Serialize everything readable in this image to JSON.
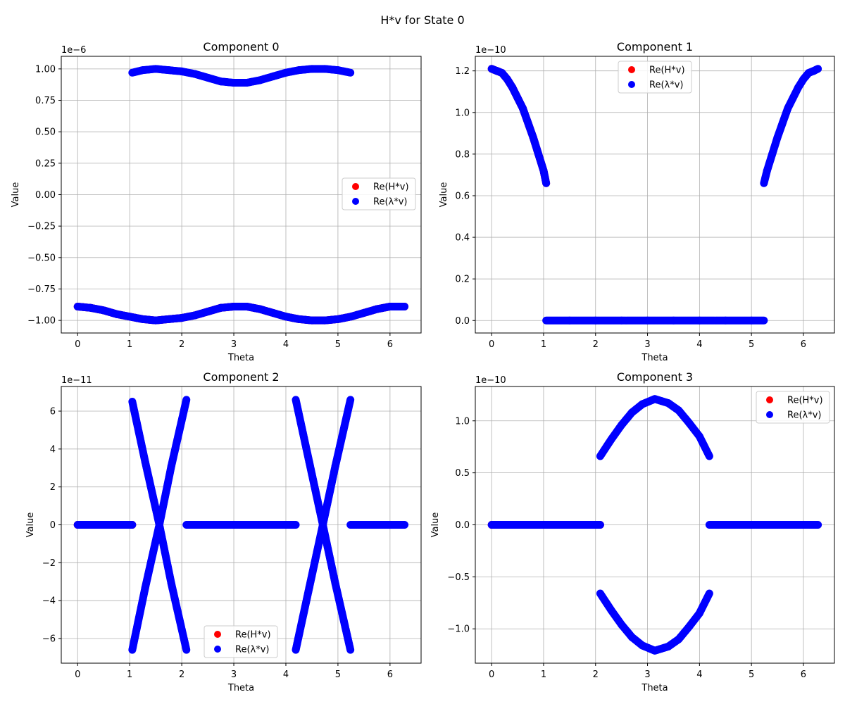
{
  "figure": {
    "title": "H*v for State 0"
  },
  "chart_data": [
    {
      "type": "scatter",
      "title": "Component 0",
      "xlabel": "Theta",
      "ylabel": "Value",
      "offset_text": "1e−6",
      "scale": 1e-06,
      "xlim": [
        -0.314,
        6.597
      ],
      "ylim": [
        -1.1,
        1.1
      ],
      "xticks": [
        0,
        1,
        2,
        3,
        4,
        5,
        6
      ],
      "xtick_labels": [
        "0",
        "1",
        "2",
        "3",
        "4",
        "5",
        "6"
      ],
      "yticks": [
        -1.0,
        -0.75,
        -0.5,
        -0.25,
        0.0,
        0.25,
        0.5,
        0.75,
        1.0
      ],
      "ytick_labels": [
        "−1.00",
        "−0.75",
        "−0.50",
        "−0.25",
        "0.00",
        "0.25",
        "0.50",
        "0.75",
        "1.00"
      ],
      "grid": true,
      "legend_position": "center-right",
      "legend": [
        "Re(H*v)",
        "Re(λ*v)"
      ],
      "series": [
        {
          "name": "Re(H*v)",
          "color": "#ff0000",
          "x": [
            0,
            0.25,
            0.5,
            0.75,
            1,
            1.25,
            1.5,
            1.75,
            2,
            2.25,
            2.5,
            2.75,
            3,
            3.25,
            3.5,
            3.75,
            4,
            4.25,
            4.5,
            4.75,
            5,
            5.25,
            5.5,
            5.75,
            6,
            6.28
          ],
          "y": [
            -0.89,
            -0.9,
            -0.92,
            -0.95,
            -0.97,
            -0.99,
            -1.0,
            -0.99,
            -0.98,
            -0.96,
            -0.93,
            -0.9,
            -0.89,
            -0.89,
            -0.91,
            -0.94,
            -0.97,
            -0.99,
            -1.0,
            -1.0,
            -0.99,
            -0.97,
            -0.94,
            -0.91,
            -0.89,
            -0.89
          ]
        },
        {
          "name": "Re(λ*v)",
          "color": "#0000ff",
          "x": [
            0,
            0.25,
            0.5,
            0.75,
            1,
            1.25,
            1.5,
            1.75,
            2,
            2.25,
            2.5,
            2.75,
            3,
            3.25,
            3.5,
            3.75,
            4,
            4.25,
            4.5,
            4.75,
            5,
            5.25,
            5.5,
            5.75,
            6,
            6.28
          ],
          "y": [
            -0.89,
            -0.9,
            -0.92,
            -0.95,
            -0.97,
            -0.99,
            -1.0,
            -0.99,
            -0.98,
            -0.96,
            -0.93,
            -0.9,
            -0.89,
            -0.89,
            -0.91,
            -0.94,
            -0.97,
            -0.99,
            -1.0,
            -1.0,
            -0.99,
            -0.97,
            -0.94,
            -0.91,
            -0.89,
            -0.89
          ]
        },
        {
          "name": "Re(λ*v)",
          "color": "#0000ff",
          "x": [
            1.05,
            1.25,
            1.5,
            1.75,
            2,
            2.25,
            2.5,
            2.75,
            3,
            3.25,
            3.5,
            3.75,
            4,
            4.25,
            4.5,
            4.75,
            5,
            5.24
          ],
          "y": [
            0.97,
            0.99,
            1.0,
            0.99,
            0.98,
            0.96,
            0.93,
            0.9,
            0.89,
            0.89,
            0.91,
            0.94,
            0.97,
            0.99,
            1.0,
            1.0,
            0.99,
            0.97
          ]
        }
      ]
    },
    {
      "type": "scatter",
      "title": "Component 1",
      "xlabel": "Theta",
      "ylabel": "Value",
      "offset_text": "1e−10",
      "scale": 1e-10,
      "xlim": [
        -0.314,
        6.597
      ],
      "ylim": [
        -0.06,
        1.27
      ],
      "xticks": [
        0,
        1,
        2,
        3,
        4,
        5,
        6
      ],
      "xtick_labels": [
        "0",
        "1",
        "2",
        "3",
        "4",
        "5",
        "6"
      ],
      "yticks": [
        0.0,
        0.2,
        0.4,
        0.6,
        0.8,
        1.0,
        1.2
      ],
      "ytick_labels": [
        "0.0",
        "0.2",
        "0.4",
        "0.6",
        "0.8",
        "1.0",
        "1.2"
      ],
      "grid": true,
      "legend_position": "upper-center",
      "legend": [
        "Re(H*v)",
        "Re(λ*v)"
      ],
      "series": [
        {
          "name": "Re(H*v)",
          "color": "#ff0000",
          "x": [
            0,
            0.1,
            0.2,
            0.3,
            0.4,
            0.5,
            0.6,
            0.7,
            0.8,
            0.9,
            1.0,
            1.05
          ],
          "y": [
            1.21,
            1.2,
            1.19,
            1.16,
            1.12,
            1.07,
            1.02,
            0.95,
            0.88,
            0.8,
            0.72,
            0.66
          ]
        },
        {
          "name": "Re(λ*v)",
          "color": "#0000ff",
          "x": [
            0,
            0.1,
            0.2,
            0.3,
            0.4,
            0.5,
            0.6,
            0.7,
            0.8,
            0.9,
            1.0,
            1.05
          ],
          "y": [
            1.21,
            1.2,
            1.19,
            1.16,
            1.12,
            1.07,
            1.02,
            0.95,
            0.88,
            0.8,
            0.72,
            0.66
          ]
        },
        {
          "name": "Re(λ*v)",
          "color": "#0000ff",
          "x": [
            1.05,
            1.5,
            2,
            2.5,
            3,
            3.5,
            4,
            4.5,
            5,
            5.24
          ],
          "y": [
            0,
            0,
            0,
            0,
            0,
            0,
            0,
            0,
            0,
            0
          ]
        },
        {
          "name": "Re(λ*v)",
          "color": "#0000ff",
          "x": [
            5.24,
            5.3,
            5.4,
            5.5,
            5.6,
            5.7,
            5.8,
            5.9,
            6.0,
            6.1,
            6.2,
            6.28
          ],
          "y": [
            0.66,
            0.72,
            0.8,
            0.88,
            0.95,
            1.02,
            1.07,
            1.12,
            1.16,
            1.19,
            1.2,
            1.21
          ]
        }
      ]
    },
    {
      "type": "scatter",
      "title": "Component 2",
      "xlabel": "Theta",
      "ylabel": "Value",
      "offset_text": "1e−11",
      "scale": 1e-11,
      "xlim": [
        -0.314,
        6.597
      ],
      "ylim": [
        -7.3,
        7.3
      ],
      "xticks": [
        0,
        1,
        2,
        3,
        4,
        5,
        6
      ],
      "xtick_labels": [
        "0",
        "1",
        "2",
        "3",
        "4",
        "5",
        "6"
      ],
      "yticks": [
        -6,
        -4,
        -2,
        0,
        2,
        4,
        6
      ],
      "ytick_labels": [
        "−6",
        "−4",
        "−2",
        "0",
        "2",
        "4",
        "6"
      ],
      "grid": true,
      "legend_position": "lower-center",
      "legend": [
        "Re(H*v)",
        "Re(λ*v)"
      ],
      "series": [
        {
          "name": "Re(H*v)",
          "color": "#ff0000",
          "x": [
            0,
            0.5,
            1.05
          ],
          "y": [
            0,
            0,
            0
          ]
        },
        {
          "name": "Re(λ*v)",
          "color": "#0000ff",
          "x": [
            0,
            0.5,
            1.05
          ],
          "y": [
            0,
            0,
            0
          ]
        },
        {
          "name": "Re(λ*v)",
          "color": "#0000ff",
          "x": [
            1.05,
            1.3,
            1.57,
            1.8,
            2.09
          ],
          "y": [
            6.5,
            3.3,
            0,
            -3.1,
            -6.6
          ]
        },
        {
          "name": "Re(λ*v)",
          "color": "#0000ff",
          "x": [
            1.05,
            1.3,
            1.57,
            1.8,
            2.09
          ],
          "y": [
            -6.6,
            -3.3,
            0,
            3.1,
            6.6
          ]
        },
        {
          "name": "Re(λ*v)",
          "color": "#0000ff",
          "x": [
            2.09,
            2.5,
            3,
            3.5,
            4,
            4.19
          ],
          "y": [
            0,
            0,
            0,
            0,
            0,
            0
          ]
        },
        {
          "name": "Re(λ*v)",
          "color": "#0000ff",
          "x": [
            4.19,
            4.45,
            4.71,
            4.95,
            5.24
          ],
          "y": [
            6.6,
            3.3,
            0,
            -3.1,
            -6.6
          ]
        },
        {
          "name": "Re(λ*v)",
          "color": "#0000ff",
          "x": [
            4.19,
            4.45,
            4.71,
            4.95,
            5.24
          ],
          "y": [
            -6.6,
            -3.3,
            0,
            3.1,
            6.6
          ]
        },
        {
          "name": "Re(λ*v)",
          "color": "#0000ff",
          "x": [
            5.24,
            5.7,
            6.28
          ],
          "y": [
            0,
            0,
            0
          ]
        }
      ]
    },
    {
      "type": "scatter",
      "title": "Component 3",
      "xlabel": "Theta",
      "ylabel": "Value",
      "offset_text": "1e−10",
      "scale": 1e-10,
      "xlim": [
        -0.314,
        6.597
      ],
      "ylim": [
        -1.33,
        1.33
      ],
      "xticks": [
        0,
        1,
        2,
        3,
        4,
        5,
        6
      ],
      "xtick_labels": [
        "0",
        "1",
        "2",
        "3",
        "4",
        "5",
        "6"
      ],
      "yticks": [
        -1.0,
        -0.5,
        0.0,
        0.5,
        1.0
      ],
      "ytick_labels": [
        "−1.0",
        "−0.5",
        "0.0",
        "0.5",
        "1.0"
      ],
      "grid": true,
      "legend_position": "upper-right",
      "legend": [
        "Re(H*v)",
        "Re(λ*v)"
      ],
      "series": [
        {
          "name": "Re(H*v)",
          "color": "#ff0000",
          "x": [
            0,
            1,
            2.09
          ],
          "y": [
            0,
            0,
            0
          ]
        },
        {
          "name": "Re(λ*v)",
          "color": "#0000ff",
          "x": [
            0,
            1,
            2.09
          ],
          "y": [
            0,
            0,
            0
          ]
        },
        {
          "name": "Re(λ*v)",
          "color": "#0000ff",
          "x": [
            2.09,
            2.3,
            2.5,
            2.7,
            2.9,
            3.14,
            3.4,
            3.6,
            3.8,
            4.0,
            4.19
          ],
          "y": [
            0.66,
            0.82,
            0.96,
            1.08,
            1.16,
            1.21,
            1.17,
            1.1,
            0.98,
            0.85,
            0.66
          ]
        },
        {
          "name": "Re(λ*v)",
          "color": "#0000ff",
          "x": [
            2.09,
            2.3,
            2.5,
            2.7,
            2.9,
            3.14,
            3.4,
            3.6,
            3.8,
            4.0,
            4.19
          ],
          "y": [
            -0.66,
            -0.82,
            -0.96,
            -1.08,
            -1.16,
            -1.21,
            -1.17,
            -1.1,
            -0.98,
            -0.85,
            -0.66
          ]
        },
        {
          "name": "Re(λ*v)",
          "color": "#0000ff",
          "x": [
            4.19,
            5,
            6.28
          ],
          "y": [
            0,
            0,
            0
          ]
        }
      ]
    }
  ]
}
